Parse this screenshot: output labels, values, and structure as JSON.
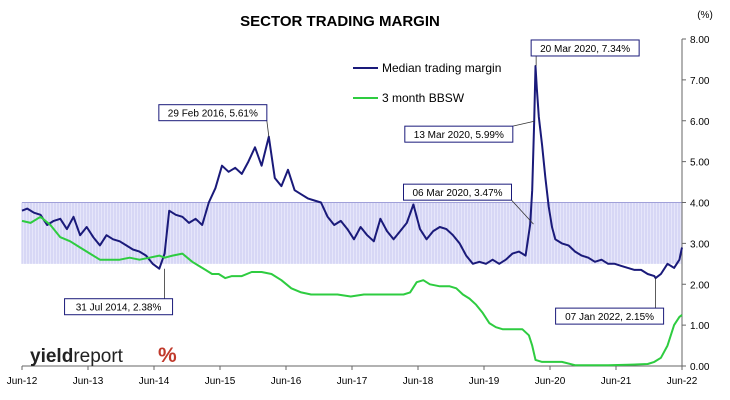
{
  "chart_data": {
    "type": "line",
    "title": "SECTOR TRADING MARGIN",
    "ylabel": "(%)",
    "ylim": [
      0,
      8
    ],
    "yticks": [
      "0.00",
      "1.00",
      "2.00",
      "3.00",
      "4.00",
      "5.00",
      "6.00",
      "7.00",
      "8.00"
    ],
    "ytick_values": [
      0,
      1,
      2,
      3,
      4,
      5,
      6,
      7,
      8
    ],
    "xticks": [
      "Jun-12",
      "Jun-13",
      "Jun-14",
      "Jun-15",
      "Jun-16",
      "Jun-17",
      "Jun-18",
      "Jun-19",
      "Jun-20",
      "Jun-21",
      "Jun-22"
    ],
    "xtick_values": [
      2012.42,
      2013.42,
      2014.42,
      2015.42,
      2016.42,
      2017.42,
      2018.42,
      2019.42,
      2020.42,
      2021.42,
      2022.42
    ],
    "xlim": [
      2012.42,
      2022.42
    ],
    "legend_position": "top-center",
    "band": {
      "y_low": 2.5,
      "y_high": 4.0,
      "color": "#c8c8f0"
    },
    "series": [
      {
        "name": "Median trading margin",
        "color": "#1a1a7a",
        "x": [
          2012.42,
          2012.5,
          2012.6,
          2012.7,
          2012.8,
          2012.9,
          2013.0,
          2013.1,
          2013.2,
          2013.3,
          2013.4,
          2013.5,
          2013.6,
          2013.7,
          2013.8,
          2013.9,
          2014.0,
          2014.1,
          2014.2,
          2014.3,
          2014.4,
          2014.5,
          2014.58,
          2014.65,
          2014.75,
          2014.85,
          2014.95,
          2015.05,
          2015.15,
          2015.25,
          2015.35,
          2015.45,
          2015.55,
          2015.65,
          2015.75,
          2015.85,
          2015.95,
          2016.05,
          2016.16,
          2016.25,
          2016.35,
          2016.45,
          2016.55,
          2016.65,
          2016.75,
          2016.85,
          2016.95,
          2017.05,
          2017.15,
          2017.25,
          2017.35,
          2017.45,
          2017.55,
          2017.65,
          2017.75,
          2017.85,
          2017.95,
          2018.05,
          2018.15,
          2018.25,
          2018.35,
          2018.45,
          2018.55,
          2018.65,
          2018.75,
          2018.85,
          2018.95,
          2019.05,
          2019.15,
          2019.25,
          2019.35,
          2019.45,
          2019.55,
          2019.65,
          2019.75,
          2019.85,
          2019.95,
          2020.05,
          2020.12,
          2020.15,
          2020.18,
          2020.2,
          2020.22,
          2020.25,
          2020.3,
          2020.35,
          2020.4,
          2020.45,
          2020.5,
          2020.6,
          2020.7,
          2020.8,
          2020.9,
          2021.0,
          2021.1,
          2021.2,
          2021.3,
          2021.4,
          2021.5,
          2021.6,
          2021.7,
          2021.8,
          2021.9,
          2022.0,
          2022.02,
          2022.1,
          2022.2,
          2022.3,
          2022.38,
          2022.42
        ],
        "y": [
          3.8,
          3.85,
          3.75,
          3.7,
          3.45,
          3.55,
          3.6,
          3.35,
          3.65,
          3.2,
          3.4,
          3.15,
          2.95,
          3.2,
          3.1,
          3.05,
          2.95,
          2.85,
          2.8,
          2.7,
          2.5,
          2.38,
          2.75,
          3.8,
          3.7,
          3.65,
          3.5,
          3.6,
          3.45,
          4.0,
          4.35,
          4.9,
          4.75,
          4.85,
          4.7,
          5.0,
          5.35,
          4.9,
          5.61,
          4.6,
          4.4,
          4.8,
          4.3,
          4.2,
          4.1,
          4.05,
          4.0,
          3.65,
          3.45,
          3.55,
          3.35,
          3.1,
          3.4,
          3.2,
          3.05,
          3.6,
          3.3,
          3.1,
          3.3,
          3.5,
          3.95,
          3.35,
          3.1,
          3.3,
          3.4,
          3.35,
          3.2,
          3.0,
          2.7,
          2.5,
          2.55,
          2.5,
          2.6,
          2.5,
          2.6,
          2.75,
          2.8,
          2.7,
          3.47,
          4.3,
          5.99,
          7.34,
          6.8,
          6.1,
          5.4,
          4.6,
          3.9,
          3.4,
          3.1,
          3.0,
          2.95,
          2.8,
          2.7,
          2.65,
          2.55,
          2.6,
          2.5,
          2.5,
          2.45,
          2.4,
          2.35,
          2.35,
          2.25,
          2.2,
          2.15,
          2.25,
          2.5,
          2.4,
          2.6,
          2.9
        ]
      },
      {
        "name": "3 month BBSW",
        "color": "#2ecc40",
        "x": [
          2012.42,
          2012.55,
          2012.7,
          2012.85,
          2013.0,
          2013.15,
          2013.3,
          2013.45,
          2013.6,
          2013.75,
          2013.9,
          2014.05,
          2014.2,
          2014.35,
          2014.5,
          2014.58,
          2014.7,
          2014.85,
          2015.0,
          2015.1,
          2015.2,
          2015.3,
          2015.4,
          2015.5,
          2015.6,
          2015.75,
          2015.9,
          2016.05,
          2016.2,
          2016.35,
          2016.5,
          2016.65,
          2016.8,
          2017.0,
          2017.2,
          2017.4,
          2017.6,
          2017.8,
          2018.0,
          2018.2,
          2018.3,
          2018.4,
          2018.5,
          2018.6,
          2018.75,
          2018.9,
          2019.0,
          2019.1,
          2019.2,
          2019.3,
          2019.4,
          2019.5,
          2019.6,
          2019.7,
          2019.8,
          2019.9,
          2020.0,
          2020.1,
          2020.15,
          2020.2,
          2020.3,
          2020.4,
          2020.6,
          2020.8,
          2021.0,
          2021.3,
          2021.6,
          2021.9,
          2022.0,
          2022.1,
          2022.2,
          2022.3,
          2022.38,
          2022.42
        ],
        "y": [
          3.55,
          3.5,
          3.65,
          3.45,
          3.15,
          3.05,
          2.9,
          2.75,
          2.6,
          2.6,
          2.6,
          2.65,
          2.6,
          2.65,
          2.7,
          2.65,
          2.7,
          2.75,
          2.55,
          2.45,
          2.35,
          2.25,
          2.25,
          2.15,
          2.2,
          2.2,
          2.3,
          2.3,
          2.25,
          2.1,
          1.9,
          1.8,
          1.75,
          1.75,
          1.75,
          1.7,
          1.75,
          1.75,
          1.75,
          1.75,
          1.8,
          2.05,
          2.1,
          2.0,
          1.95,
          1.95,
          1.9,
          1.75,
          1.65,
          1.5,
          1.3,
          1.05,
          0.95,
          0.9,
          0.9,
          0.9,
          0.9,
          0.75,
          0.5,
          0.15,
          0.1,
          0.1,
          0.1,
          0.02,
          0.02,
          0.02,
          0.03,
          0.05,
          0.1,
          0.2,
          0.5,
          1.0,
          1.2,
          1.25
        ]
      }
    ],
    "annotations": [
      {
        "text": "29 Feb 2016,  5.61%",
        "x": 2016.16,
        "y": 5.61,
        "box_pos": "above-left"
      },
      {
        "text": "31 Jul 2014,  2.38%",
        "x": 2014.58,
        "y": 2.38,
        "box_pos": "below-left"
      },
      {
        "text": "20 Mar 2020,  7.34%",
        "x": 2020.21,
        "y": 7.34,
        "box_pos": "above-right"
      },
      {
        "text": "13 Mar 2020,  5.99%",
        "x": 2020.19,
        "y": 5.99,
        "box_pos": "left"
      },
      {
        "text": "06 Mar 2020,  3.47%",
        "x": 2020.17,
        "y": 3.47,
        "box_pos": "upper-left"
      },
      {
        "text": "07 Jan 2022,  2.15%",
        "x": 2022.02,
        "y": 2.15,
        "box_pos": "below-left"
      }
    ]
  },
  "logo": {
    "word1": "yield",
    "word2": "report",
    "symbol": "%"
  }
}
